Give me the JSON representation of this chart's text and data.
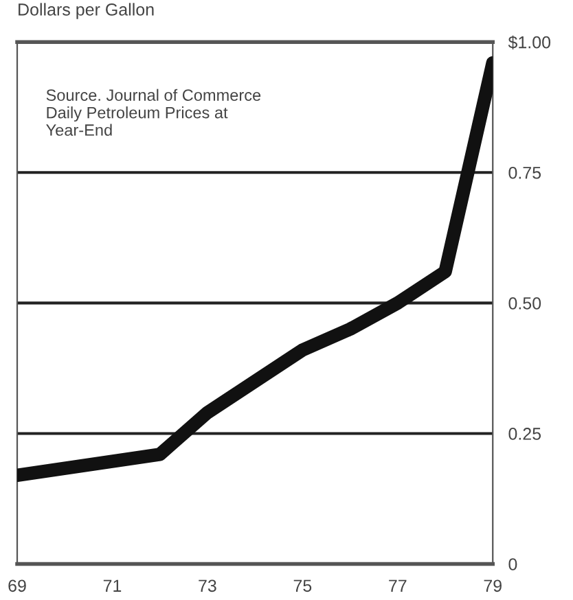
{
  "chart_data": {
    "type": "line",
    "ylabel": "Dollars per Gallon",
    "annotations": [
      "Source. Journal of Commerce\nDaily Petroleum Prices at\nYear-End"
    ],
    "x": [
      1969,
      1972,
      1973,
      1975,
      1976,
      1977,
      1978,
      1979
    ],
    "series": [
      {
        "color": "#111111",
        "values": [
          0.17,
          0.21,
          0.29,
          0.41,
          0.45,
          0.5,
          0.56,
          0.96
        ]
      }
    ],
    "xlim": [
      1969,
      1979
    ],
    "xticks": [
      {
        "value": 1969,
        "label": "69"
      },
      {
        "value": 1971,
        "label": "71"
      },
      {
        "value": 1973,
        "label": "73"
      },
      {
        "value": 1975,
        "label": "75"
      },
      {
        "value": 1977,
        "label": "77"
      },
      {
        "value": 1979,
        "label": "79"
      }
    ],
    "ylim": [
      0,
      1
    ],
    "yticks": [
      0,
      {
        "value": 0.25,
        "label": "0.25"
      },
      {
        "value": 0.5,
        "label": "0.50"
      },
      {
        "value": 0.75,
        "label": "0.75"
      },
      {
        "value": 1,
        "label": "$1.00"
      }
    ],
    "grid": "y",
    "line_style": "solid",
    "marker": "none"
  }
}
